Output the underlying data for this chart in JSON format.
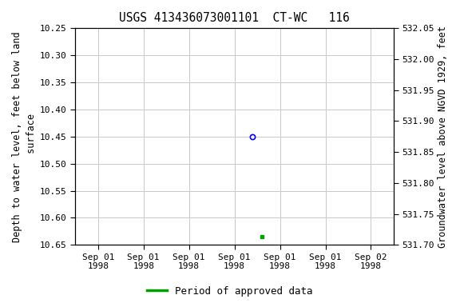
{
  "title": "USGS 413436073001101  CT-WC   116",
  "ylabel_left": "Depth to water level, feet below land\n surface",
  "ylabel_right": "Groundwater level above NGVD 1929, feet",
  "ylim_left": [
    10.25,
    10.65
  ],
  "ylim_right": [
    531.7,
    532.05
  ],
  "background_color": "#ffffff",
  "grid_color": "#c8c8c8",
  "point_blue_x": 3.4,
  "point_blue_y": 10.45,
  "point_green_x": 3.6,
  "point_green_y": 10.635,
  "xlim": [
    -0.5,
    6.5
  ],
  "x_tick_positions": [
    0,
    1,
    2,
    3,
    4,
    5,
    6
  ],
  "x_tick_labels": [
    "Sep 01\n1998",
    "Sep 01\n1998",
    "Sep 01\n1998",
    "Sep 01\n1998",
    "Sep 01\n1998",
    "Sep 01\n1998",
    "Sep 02\n1998"
  ],
  "left_yticks": [
    10.25,
    10.3,
    10.35,
    10.4,
    10.45,
    10.5,
    10.55,
    10.6,
    10.65
  ],
  "right_yticks": [
    531.7,
    531.75,
    531.8,
    531.85,
    531.9,
    531.95,
    532.0,
    532.05
  ],
  "legend_label": "Period of approved data",
  "legend_color": "#00a000",
  "title_fontsize": 10.5,
  "label_fontsize": 8.5,
  "tick_fontsize": 8,
  "legend_fontsize": 9
}
